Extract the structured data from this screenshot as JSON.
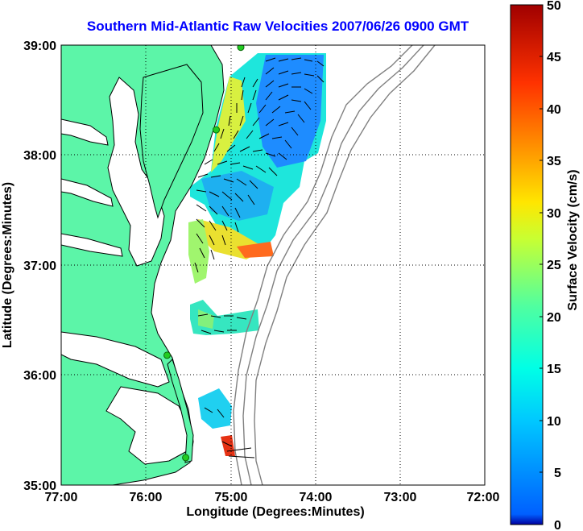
{
  "title": "Southern Mid-Atlantic Raw Velocities 2007/06/26 0900 GMT",
  "xlabel": "Longitude (Degrees:Minutes)",
  "ylabel": "Latitude (Degrees:Minutes)",
  "colorbar_label": "Surface Velocity (cm/s)",
  "x_ticks": [
    "77:00",
    "76:00",
    "75:00",
    "74:00",
    "73:00",
    "72:00"
  ],
  "y_ticks": [
    "39:00",
    "38:00",
    "37:00",
    "36:00",
    "35:00"
  ],
  "colorbar_ticks": [
    "50",
    "45",
    "40",
    "35",
    "30",
    "25",
    "20",
    "15",
    "10",
    "5",
    "0"
  ],
  "colors": {
    "land": "#5cf5a8",
    "title": "#0000ff",
    "coast": "#000000",
    "bathymetry": "#808080",
    "station": "#22cc22"
  },
  "map": {
    "lon_range": [
      -77,
      -72
    ],
    "lat_range": [
      35,
      39
    ],
    "colorbar_range": [
      0,
      50
    ],
    "colormap": "jet",
    "grid": "dotted",
    "stations": [
      {
        "lon": -74.88,
        "lat": 38.98
      },
      {
        "lon": -75.17,
        "lat": 38.23
      },
      {
        "lon": -75.75,
        "lat": 36.18
      },
      {
        "lon": -75.53,
        "lat": 35.25
      }
    ]
  }
}
